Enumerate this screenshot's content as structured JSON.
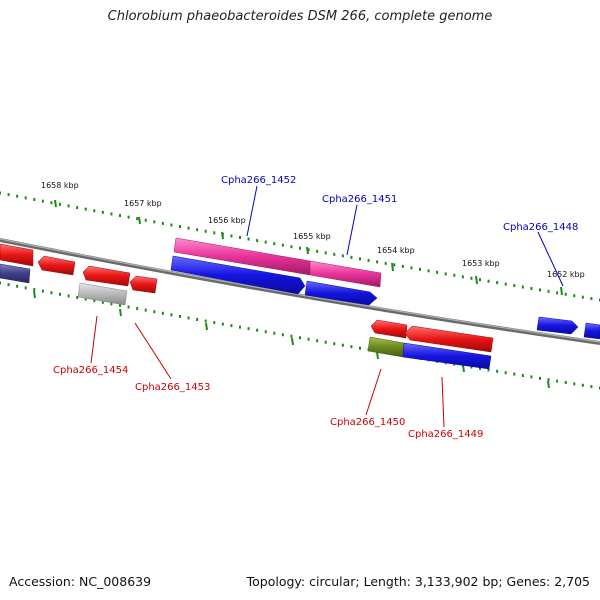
{
  "title": "Chlorobium phaeobacteroides DSM 266, complete genome",
  "footer": {
    "accession": "Accession: NC_008639",
    "summary": "Topology: circular; Length: 3,133,902 bp; Genes: 2,705"
  },
  "ticks": [
    "1658 kbp",
    "1657 kbp",
    "1656 kbp",
    "1655 kbp",
    "1654 kbp",
    "1653 kbp",
    "1652 kbp"
  ],
  "genes": [
    {
      "id": "Cpha266_1452",
      "strand": "forward",
      "color": "#e8329a"
    },
    {
      "id": "Cpha266_1451",
      "strand": "forward",
      "color": "#e8329a"
    },
    {
      "id": "Cpha266_1448",
      "strand": "forward",
      "color": "#1515e0"
    },
    {
      "id": "Cpha266_1454",
      "strand": "reverse",
      "color": "#e81515"
    },
    {
      "id": "Cpha266_1453",
      "strand": "reverse",
      "color": "#b0b0b0"
    },
    {
      "id": "Cpha266_1450",
      "strand": "reverse",
      "color": "#6b8a1e"
    },
    {
      "id": "Cpha266_1449",
      "strand": "reverse",
      "color": "#e81515"
    }
  ],
  "colors": {
    "forward_label": "#0000c0",
    "reverse_label": "#cc0000",
    "backbone": "#808080",
    "tick": "#1a8a1a",
    "forward_gene": "#1515e0",
    "reverse_gene": "#e81515",
    "pink_gene": "#e8329a",
    "gray_gene": "#b0b0b0",
    "olive_gene": "#6b8a1e",
    "navy_gene": "#3f3f8a"
  }
}
